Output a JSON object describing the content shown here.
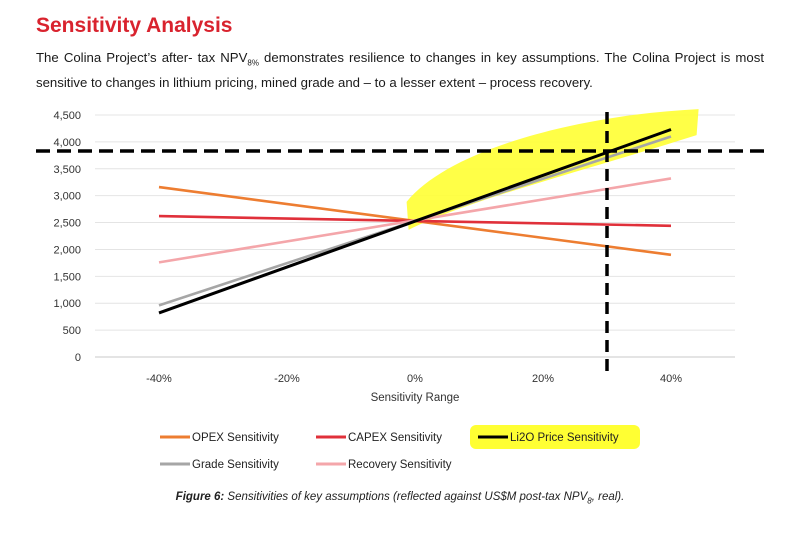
{
  "page": {
    "heading": "Sensitivity Analysis",
    "paragraph_a": "The Colina Project’s after- tax NPV",
    "paragraph_sub": "8%",
    "paragraph_b": " demonstrates resilience to changes in key assumptions. The Colina Project is most sensitive to changes in lithium pricing, mined grade and – to a lesser extent – process recovery.",
    "caption_label": "Figure 6:",
    "caption_a": " Sensitivities of key assumptions (reflected against US$M post-tax NPV",
    "caption_sub": "8",
    "caption_b": ", real)."
  },
  "chart_data": {
    "type": "line",
    "xlabel": "Sensitivity Range",
    "ylabel": "",
    "x": [
      -40,
      40
    ],
    "x_ticks": [
      "-40%",
      "-20%",
      "0%",
      "20%",
      "40%"
    ],
    "x_tick_values": [
      -40,
      -20,
      0,
      20,
      40
    ],
    "ylim": [
      0,
      4500
    ],
    "y_ticks": [
      "0",
      "500",
      "1,000",
      "1,500",
      "2,000",
      "2,500",
      "3,000",
      "3,500",
      "4,000",
      "4,500"
    ],
    "y_tick_values": [
      0,
      500,
      1000,
      1500,
      2000,
      2500,
      3000,
      3500,
      4000,
      4500
    ],
    "grid": true,
    "legend_position": "bottom",
    "series": [
      {
        "name": "OPEX Sensitivity",
        "color": "#ed7d31",
        "values": [
          3160,
          1900
        ]
      },
      {
        "name": "CAPEX Sensitivity",
        "color": "#e0303a",
        "values": [
          2620,
          2440
        ]
      },
      {
        "name": "Li2O Price Sensitivity",
        "color": "#000000",
        "values": [
          820,
          4230
        ],
        "highlighted": true
      },
      {
        "name": "Grade Sensitivity",
        "color": "#a6a6a6",
        "values": [
          960,
          4100
        ]
      },
      {
        "name": "Recovery Sensitivity",
        "color": "#f4a6aa",
        "values": [
          1760,
          3320
        ]
      }
    ],
    "annotations": {
      "dashed_vertical_x": 30,
      "dashed_horizontal_y": 3830,
      "highlight_color": "#ffff33"
    }
  }
}
